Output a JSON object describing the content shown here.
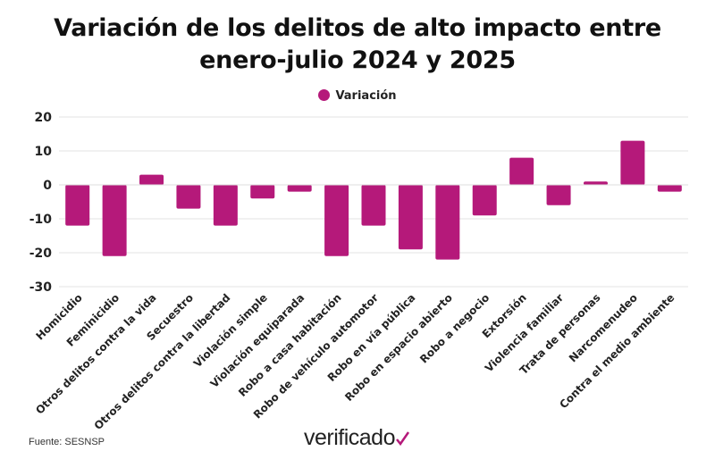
{
  "chart_data": {
    "type": "bar",
    "title": "Variación de los delitos de alto impacto entre enero-julio 2024 y 2025",
    "title_lines": [
      "Variación de los delitos de alto impacto entre",
      "enero-julio 2024 y 2025"
    ],
    "xlabel": "",
    "ylabel": "",
    "categories": [
      "Homicidio",
      "Feminicidio",
      "Otros delitos contra la vida",
      "Secuestro",
      "Otros delitos contra la libertad",
      "Violación simple",
      "Violación equiparada",
      "Robo a casa habitación",
      "Robo de vehículo automotor",
      "Robo en vía pública",
      "Robo en espacio abierto",
      "Robo a negocio",
      "Extorsión",
      "Violencia familiar",
      "Trata de personas",
      "Narcomenudeo",
      "Contra el medio ambiente"
    ],
    "series": [
      {
        "name": "Variación",
        "values": [
          -12,
          -21,
          3,
          -7,
          -12,
          -4,
          -2,
          -21,
          -12,
          -19,
          -22,
          -9,
          8,
          -6,
          1,
          13,
          -2
        ],
        "color": "#b5197a"
      }
    ],
    "ylim": [
      -30,
      20
    ],
    "yticks": [
      20,
      10,
      0,
      -10,
      -20,
      -30
    ],
    "grid": true,
    "legend_position": "top"
  },
  "footer": {
    "source": "Fuente: SESNSP",
    "logo": "verificado"
  }
}
